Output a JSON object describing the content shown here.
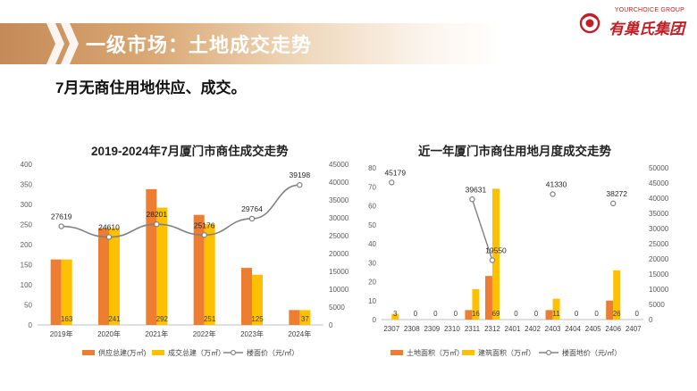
{
  "header": {
    "title": "一级市场：土地成交走势",
    "subtitle": "7月无商住用地供应、成交。",
    "logo_top": "YOURCHOICE GROUP",
    "logo_main": "有巢氏集团"
  },
  "colors": {
    "supply": "#ed7d31",
    "deal": "#ffc000",
    "price": "#808080",
    "banner": "#c58a57"
  },
  "chart_data": [
    {
      "type": "bar",
      "title": "2019-2024年7月厦门市商住成交走势",
      "categories": [
        "2019年",
        "2020年",
        "2021年",
        "2022年",
        "2023年",
        "2024年"
      ],
      "series": [
        {
          "name": "供应总建(万㎡)",
          "values": [
            163,
            241,
            338,
            274,
            142,
            37
          ]
        },
        {
          "name": "成交总建（万㎡）",
          "values": [
            163,
            241,
            292,
            251,
            125,
            37
          ]
        },
        {
          "name": "楼面价（元/㎡）",
          "type": "line",
          "values": [
            27619,
            24610,
            28201,
            25176,
            29764,
            39198
          ]
        }
      ],
      "bar_labels": [
        "163",
        "241",
        "292",
        "251",
        "125",
        "37"
      ],
      "price_labels": [
        "27619",
        "24610",
        "28201",
        "25176",
        "29764",
        "39198"
      ],
      "ylim": [
        0,
        400
      ],
      "yticks": [
        "0",
        "50",
        "100",
        "150",
        "200",
        "250",
        "300",
        "350",
        "400"
      ],
      "y2lim": [
        0,
        45000
      ],
      "y2ticks": [
        "0",
        "5000",
        "10000",
        "15000",
        "20000",
        "25000",
        "30000",
        "35000",
        "40000",
        "45000"
      ],
      "legend": "bottom"
    },
    {
      "type": "bar",
      "title": "近一年厦门市商住用地月度成交走势",
      "categories": [
        "2307",
        "2308",
        "2309",
        "2310",
        "2311",
        "2312",
        "2401",
        "2402",
        "2403",
        "2404",
        "2405",
        "2406",
        "2407"
      ],
      "series": [
        {
          "name": "土地面积（万㎡）",
          "values": [
            0,
            0,
            0,
            0,
            5,
            23,
            0,
            0,
            5,
            0,
            0,
            10,
            0
          ]
        },
        {
          "name": "建筑面积（万㎡）",
          "values": [
            3,
            0,
            0,
            0,
            16,
            69,
            0,
            0,
            11,
            0,
            0,
            26,
            0
          ]
        },
        {
          "name": "楼面地价（元/㎡）",
          "type": "scatter",
          "values": [
            45179,
            null,
            null,
            null,
            39631,
            19550,
            null,
            null,
            41330,
            null,
            null,
            38272,
            null
          ]
        }
      ],
      "bar_labels": [
        "3",
        "0",
        "0",
        "0",
        "16",
        "69",
        "0",
        "0",
        "11",
        "0",
        "0",
        "26",
        "0"
      ],
      "price_labels": [
        "45179",
        "",
        "",
        "",
        "39631",
        "19550",
        "",
        "",
        "41330",
        "",
        "",
        "38272",
        ""
      ],
      "ylim": [
        0,
        80
      ],
      "yticks": [
        "0",
        "10",
        "20",
        "30",
        "40",
        "50",
        "60",
        "70",
        "80"
      ],
      "y2lim": [
        0,
        50000
      ],
      "y2ticks": [
        "0",
        "5000",
        "10000",
        "15000",
        "20000",
        "25000",
        "30000",
        "35000",
        "40000",
        "45000",
        "50000"
      ],
      "legend": "bottom"
    }
  ]
}
